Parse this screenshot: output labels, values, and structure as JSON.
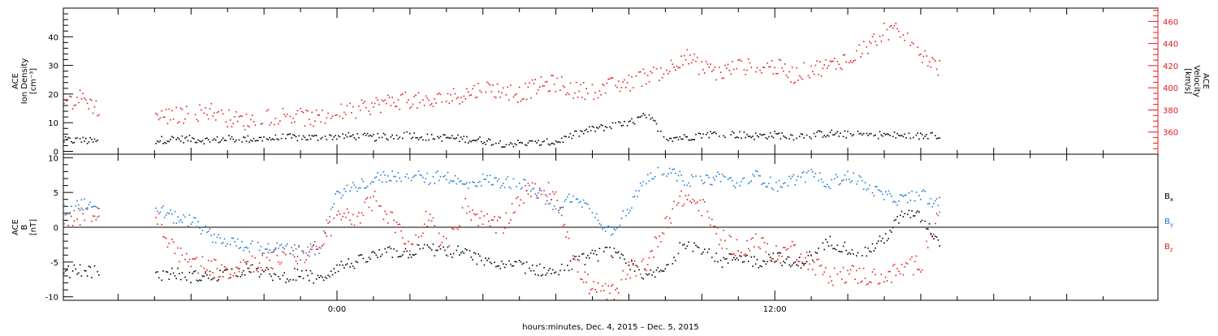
{
  "colors": {
    "black": "#000000",
    "red": "#e31a1c",
    "blue": "#1f78d4"
  },
  "xaxis": {
    "tick_labels": [
      "0:00",
      "12:00"
    ],
    "caption": "hours:minutes, Dec.  4, 2015 – Dec.  5, 2015"
  },
  "chart_data": [
    {
      "type": "scatter",
      "panel": "top",
      "x_range_hours": [
        -7.5,
        22.5
      ],
      "data_end_hour": 16.5,
      "left_axis": {
        "label_lines": [
          "ACE",
          "Ion Density",
          "[cm⁻³]"
        ],
        "ylim": [
          -1,
          50
        ],
        "ticks": [
          0,
          10,
          20,
          30,
          40
        ],
        "tick_labels": [
          "0",
          "10",
          "20",
          "30",
          "40"
        ]
      },
      "right_axis": {
        "label_lines": [
          "ACE",
          "Velocity",
          "[km/s]"
        ],
        "ylim": [
          340,
          472
        ],
        "ticks": [
          360,
          380,
          400,
          420,
          440,
          460
        ],
        "tick_labels": [
          "360",
          "380",
          "400",
          "420",
          "440",
          "460"
        ]
      },
      "series": [
        {
          "color": "black",
          "axis": "left",
          "x": [
            -7.5,
            -7.0,
            -6.5,
            -6.0,
            -5.5,
            -5.0,
            -4.5,
            -4.0,
            -3.5,
            -3.0,
            -2.5,
            -2.0,
            -1.5,
            -1.0,
            -0.5,
            0.0,
            0.5,
            1.0,
            1.5,
            2.0,
            2.5,
            3.0,
            3.5,
            4.0,
            4.5,
            5.0,
            5.5,
            6.0,
            6.5,
            7.0,
            7.5,
            8.0,
            8.5,
            9.0,
            9.5,
            10.0,
            10.5,
            11.0,
            11.5,
            12.0,
            12.5,
            13.0,
            13.5,
            14.0,
            14.5,
            15.0,
            15.5,
            16.0,
            16.5
          ],
          "y": [
            4,
            4,
            3.5,
            null,
            null,
            4,
            4.5,
            4.5,
            4,
            4.5,
            4.5,
            4.5,
            5,
            5,
            5,
            5.5,
            5.5,
            5,
            5.5,
            6,
            5,
            5,
            4.5,
            4,
            3,
            3,
            3,
            3.5,
            6,
            8,
            9,
            10,
            13,
            5,
            5,
            6,
            6.5,
            6,
            5.5,
            6,
            5.5,
            6,
            6.5,
            6,
            6,
            6,
            5.5,
            5.5,
            6
          ]
        },
        {
          "color": "red",
          "axis": "right",
          "x": [
            -7.5,
            -7.0,
            -6.5,
            -6.0,
            -5.5,
            -5.0,
            -4.5,
            -4.0,
            -3.5,
            -3.0,
            -2.5,
            -2.0,
            -1.5,
            -1.0,
            -0.5,
            0.0,
            0.5,
            1.0,
            1.5,
            2.0,
            2.5,
            3.0,
            3.5,
            4.0,
            4.5,
            5.0,
            5.5,
            6.0,
            6.5,
            7.0,
            7.5,
            8.0,
            8.5,
            9.0,
            9.5,
            10.0,
            10.5,
            11.0,
            11.5,
            12.0,
            12.5,
            13.0,
            13.5,
            14.0,
            14.5,
            15.0,
            15.5,
            16.0,
            16.5
          ],
          "y": [
            385,
            392,
            380,
            null,
            null,
            375,
            375,
            377,
            380,
            373,
            370,
            374,
            376,
            374,
            372,
            378,
            380,
            385,
            388,
            390,
            386,
            392,
            395,
            400,
            398,
            395,
            402,
            405,
            398,
            398,
            402,
            405,
            412,
            416,
            430,
            418,
            414,
            420,
            418,
            420,
            412,
            418,
            420,
            428,
            438,
            452,
            450,
            432,
            418
          ]
        }
      ]
    },
    {
      "type": "scatter",
      "panel": "bottom",
      "x_range_hours": [
        -7.5,
        22.5
      ],
      "data_end_hour": 16.5,
      "ylim": [
        -10.5,
        10.5
      ],
      "yticks": [
        -10,
        -5,
        0,
        5,
        10
      ],
      "ytick_labels": [
        "-10",
        "-5",
        "0",
        "5",
        "10"
      ],
      "ylabel_lines": [
        "ACE",
        "B",
        "[nT]"
      ],
      "legend_placement": "right",
      "series": [
        {
          "name": "B",
          "sub": "x",
          "color": "black",
          "x": [
            -7.5,
            -7.0,
            -6.5,
            -6.0,
            -5.5,
            -5.0,
            -4.5,
            -4.0,
            -3.5,
            -3.0,
            -2.5,
            -2.0,
            -1.5,
            -1.0,
            -0.5,
            0.0,
            0.5,
            1.0,
            1.5,
            2.0,
            2.5,
            3.0,
            3.5,
            4.0,
            4.5,
            5.0,
            5.5,
            6.0,
            6.5,
            7.0,
            7.5,
            8.0,
            8.5,
            9.0,
            9.5,
            10.0,
            10.5,
            11.0,
            11.5,
            12.0,
            12.5,
            13.0,
            13.5,
            14.0,
            14.5,
            15.0,
            15.5,
            16.0,
            16.5
          ],
          "y": [
            -6.5,
            -6,
            -6.5,
            null,
            null,
            -7,
            -6.5,
            -7,
            -7,
            -6.5,
            -6,
            -6.5,
            -7,
            -6.5,
            -7.5,
            -5.5,
            -5,
            -4,
            -3.5,
            -3.5,
            -3,
            -3.5,
            -3.5,
            -5,
            -5.5,
            -5.5,
            -6,
            -6.5,
            -5,
            -4,
            -3.5,
            -5.5,
            -7,
            -6,
            -2,
            -3,
            -5,
            -4,
            -5,
            -4,
            -5.5,
            -4,
            -2,
            -3,
            -3.5,
            -1.5,
            2,
            1.5,
            -2
          ]
        },
        {
          "name": "B",
          "sub": "y",
          "color": "blue",
          "x": [
            -7.5,
            -7.0,
            -6.5,
            -6.0,
            -5.5,
            -5.0,
            -4.5,
            -4.0,
            -3.5,
            -3.0,
            -2.5,
            -2.0,
            -1.5,
            -1.0,
            -0.5,
            0.0,
            0.5,
            1.0,
            1.5,
            2.0,
            2.5,
            3.0,
            3.5,
            4.0,
            4.5,
            5.0,
            5.5,
            6.0,
            6.5,
            7.0,
            7.5,
            8.0,
            8.5,
            9.0,
            9.5,
            10.0,
            10.5,
            11.0,
            11.5,
            12.0,
            12.5,
            13.0,
            13.5,
            14.0,
            14.5,
            15.0,
            15.5,
            16.0,
            16.5
          ],
          "y": [
            2.5,
            3.5,
            2,
            null,
            null,
            3,
            1.5,
            1,
            -1,
            -2,
            -2.5,
            -3,
            -3,
            -3.5,
            -3,
            5,
            6,
            7,
            7.5,
            7.5,
            7,
            7.5,
            6,
            7,
            6.5,
            6.5,
            5,
            2.5,
            5,
            2,
            -0.5,
            3,
            7.5,
            8,
            7,
            6.5,
            7.5,
            6,
            7.5,
            6,
            7,
            7.5,
            6.5,
            7.5,
            6,
            4.5,
            4,
            5,
            3
          ]
        },
        {
          "name": "B",
          "sub": "z",
          "color": "red",
          "x": [
            -7.5,
            -7.0,
            -6.5,
            -6.0,
            -5.5,
            -5.0,
            -4.5,
            -4.0,
            -3.5,
            -3.0,
            -2.5,
            -2.0,
            -1.5,
            -1.0,
            -0.5,
            0.0,
            0.5,
            1.0,
            1.5,
            2.0,
            2.5,
            3.0,
            3.5,
            4.0,
            4.5,
            5.0,
            5.5,
            6.0,
            6.5,
            7.0,
            7.5,
            8.0,
            8.5,
            9.0,
            9.5,
            10.0,
            10.5,
            11.0,
            11.5,
            12.0,
            12.5,
            13.0,
            13.5,
            14.0,
            14.5,
            15.0,
            15.5,
            16.0,
            16.5
          ],
          "y": [
            0.5,
            2,
            1.5,
            null,
            null,
            2,
            -3,
            -5,
            -5.5,
            -6,
            -5,
            -5,
            -4,
            -4,
            -3,
            2,
            1.5,
            4,
            1,
            -3,
            2,
            -3,
            3,
            1,
            0,
            4.5,
            5.5,
            5,
            -5,
            -9,
            -9.5,
            -6,
            -5,
            1,
            4.5,
            3,
            -1.5,
            -3,
            -2,
            -4,
            -3,
            -5,
            -7,
            -6.5,
            -7,
            -7,
            -6,
            -5,
            3
          ]
        }
      ]
    }
  ]
}
